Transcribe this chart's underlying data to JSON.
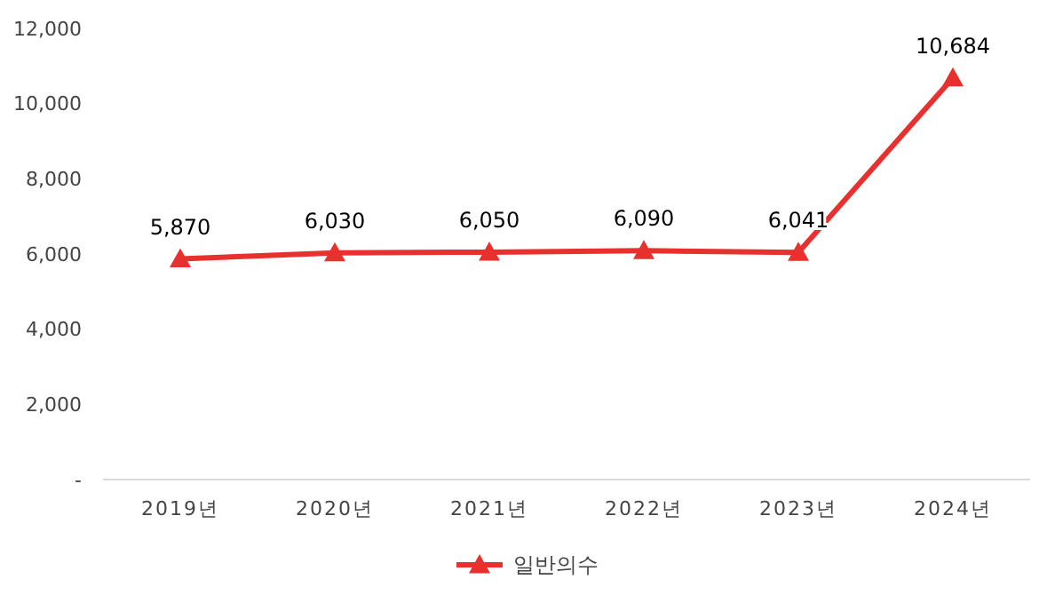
{
  "chart_data": {
    "type": "line",
    "categories": [
      "2019년",
      "2020년",
      "2021년",
      "2022년",
      "2023년",
      "2024년"
    ],
    "series": [
      {
        "name": "일반의수",
        "color": "#e8302e",
        "values": [
          5870,
          6030,
          6050,
          6090,
          6041,
          10684
        ],
        "value_labels": [
          "5,870",
          "6,030",
          "6,050",
          "6,090",
          "6,041",
          "10,684"
        ]
      }
    ],
    "ylim": [
      0,
      12000
    ],
    "yticks": [
      {
        "value": 0,
        "label": "-"
      },
      {
        "value": 2000,
        "label": "2,000"
      },
      {
        "value": 4000,
        "label": "4,000"
      },
      {
        "value": 6000,
        "label": "6,000"
      },
      {
        "value": 8000,
        "label": "8,000"
      },
      {
        "value": 10000,
        "label": "10,000"
      },
      {
        "value": 12000,
        "label": "12,000"
      }
    ],
    "legend": "bottom",
    "marker": "triangle",
    "grid": false
  }
}
